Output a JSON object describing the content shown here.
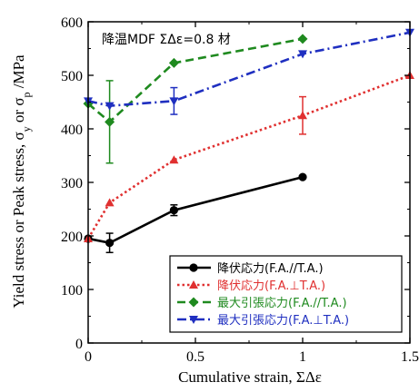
{
  "chart_data": {
    "type": "line",
    "annotation": "降温MDF ΣΔε=0.8 材",
    "xlabel": "Cumulative strain, ΣΔε",
    "ylabel": "Yield stress or Peak stress, σ_y or σ_p /MPa",
    "ylabel_parts": {
      "main": "Yield stress or Peak stress, σ",
      "sub1": "y",
      "mid": " or σ",
      "sub2": "p",
      "end": " /MPa"
    },
    "xlim": [
      0,
      1.5
    ],
    "ylim": [
      0,
      600
    ],
    "xticks": [
      0,
      0.5,
      1,
      1.5
    ],
    "xtick_labels": [
      "0",
      "0.5",
      "1",
      "1.5"
    ],
    "yticks": [
      0,
      100,
      200,
      300,
      400,
      500,
      600
    ],
    "ytick_labels": [
      "0",
      "100",
      "200",
      "300",
      "400",
      "500",
      "600"
    ],
    "legend_position": "bottom-right",
    "series": [
      {
        "name": "降伏応力(F.A.//T.A.)",
        "color": "#000000",
        "dash": "solid",
        "marker": "circle",
        "x": [
          0,
          0.1,
          0.4,
          1.0
        ],
        "y": [
          195,
          187,
          248,
          310
        ],
        "yerr": [
          0,
          18,
          10,
          0
        ]
      },
      {
        "name": "降伏応力(F.A.⊥T.A.)",
        "color": "#e03030",
        "dash": "dotted",
        "marker": "triangle-up",
        "x": [
          0,
          0.1,
          0.4,
          1.0,
          1.5
        ],
        "y": [
          195,
          262,
          342,
          425,
          500
        ],
        "yerr": [
          0,
          0,
          0,
          35,
          0
        ]
      },
      {
        "name": "最大引張応力(F.A.//T.A.)",
        "color": "#1f8a1f",
        "dash": "dashed",
        "marker": "diamond",
        "x": [
          0,
          0.1,
          0.4,
          1.0
        ],
        "y": [
          447,
          413,
          523,
          568
        ],
        "yerr": [
          0,
          77,
          0,
          0
        ]
      },
      {
        "name": "最大引張応力(F.A.⊥T.A.)",
        "color": "#1f2fc0",
        "dash": "dashdot",
        "marker": "triangle-down",
        "x": [
          0,
          0.1,
          0.4,
          1.0,
          1.5
        ],
        "y": [
          452,
          443,
          452,
          540,
          580
        ],
        "yerr": [
          0,
          0,
          25,
          0,
          0
        ]
      }
    ]
  }
}
